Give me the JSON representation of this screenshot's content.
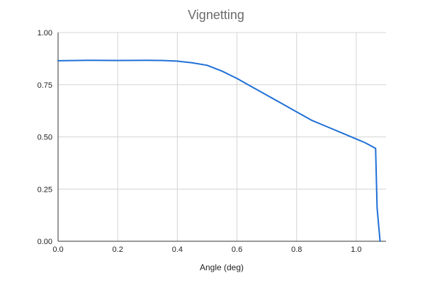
{
  "chart_data": {
    "type": "line",
    "title": "Vignetting",
    "xlabel": "Angle (deg)",
    "ylabel": "",
    "xlim": [
      0,
      1.1
    ],
    "ylim": [
      0,
      1.0
    ],
    "xticks": [
      0.0,
      0.2,
      0.4,
      0.6,
      0.8,
      1.0
    ],
    "xtick_labels": [
      "0.0",
      "0.2",
      "0.4",
      "0.6",
      "0.8",
      "1.0"
    ],
    "yticks": [
      0,
      0.25,
      0.5,
      0.75,
      1.0
    ],
    "ytick_labels": [
      "0.00",
      "0.25",
      "0.50",
      "0.75",
      "1.00"
    ],
    "grid": true,
    "series": [
      {
        "name": "Vignetting",
        "color": "#1f6fd6",
        "x": [
          0.0,
          0.1,
          0.2,
          0.3,
          0.35,
          0.4,
          0.45,
          0.5,
          0.55,
          0.6,
          0.65,
          0.7,
          0.75,
          0.8,
          0.85,
          0.9,
          0.95,
          1.0,
          1.03,
          1.065,
          1.07,
          1.08
        ],
        "y": [
          0.865,
          0.867,
          0.866,
          0.867,
          0.866,
          0.863,
          0.855,
          0.843,
          0.815,
          0.78,
          0.74,
          0.7,
          0.66,
          0.62,
          0.58,
          0.55,
          0.52,
          0.49,
          0.472,
          0.445,
          0.16,
          0.0
        ]
      }
    ]
  }
}
